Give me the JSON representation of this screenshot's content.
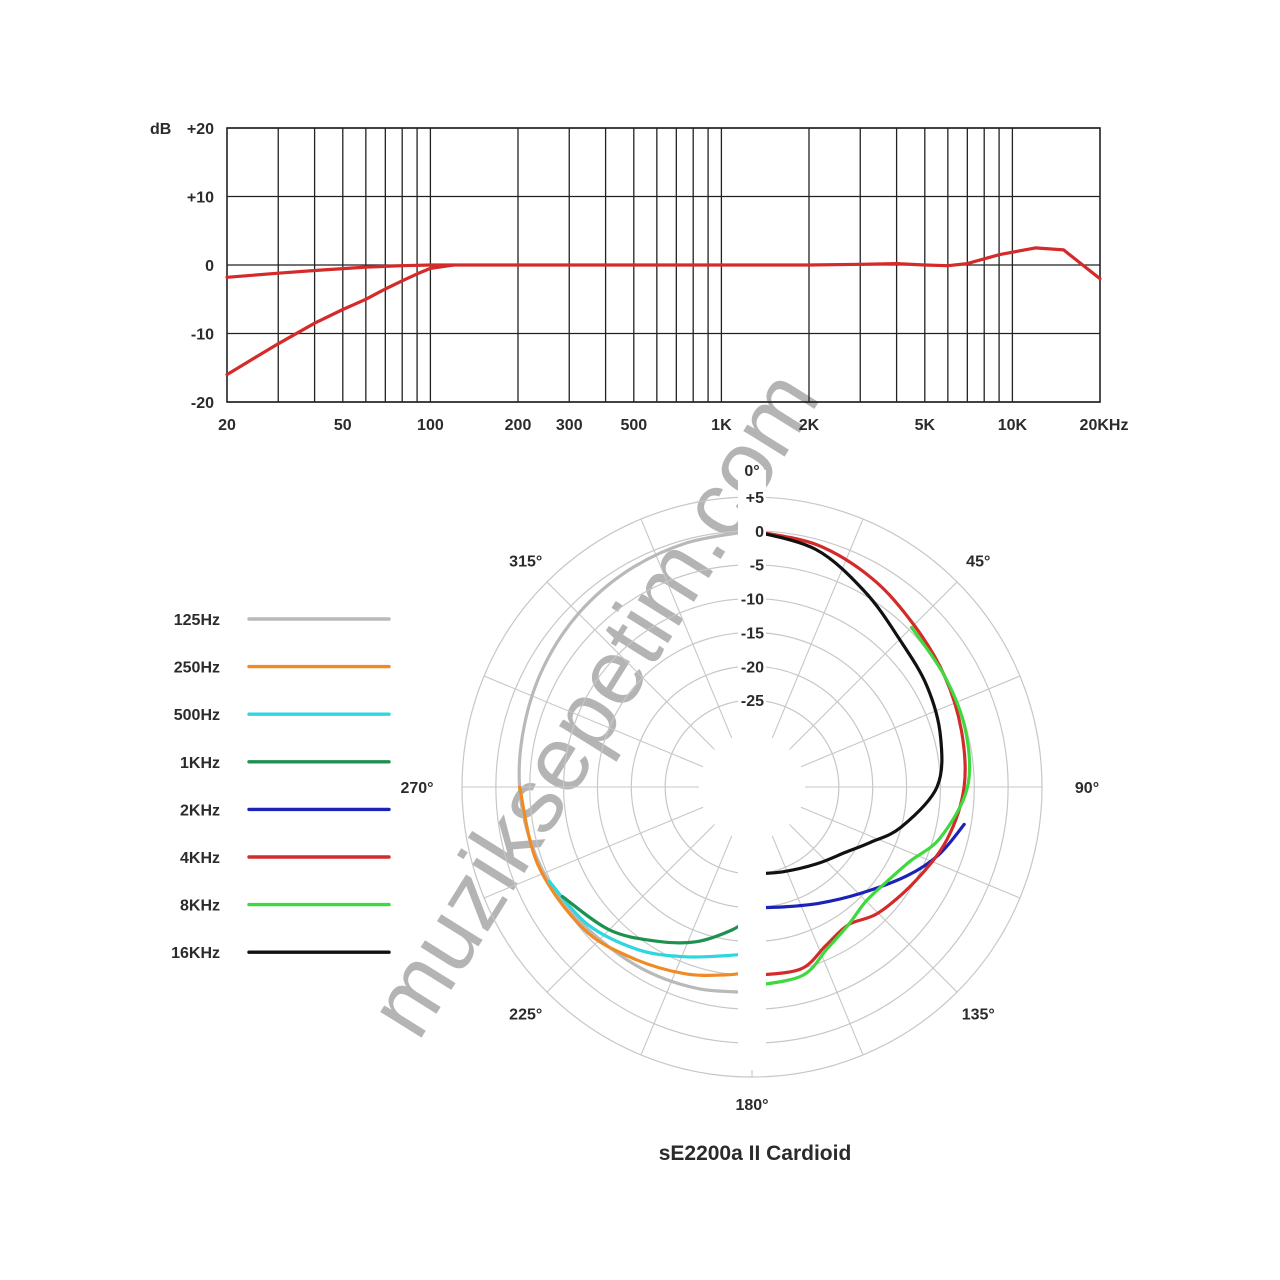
{
  "watermark": "muziksepetim.com",
  "chart_data": [
    {
      "type": "line",
      "x_scale": "log",
      "xlim": [
        20,
        20000
      ],
      "ylim": [
        -20,
        20
      ],
      "grid": true,
      "ylabel": "dB",
      "y_ticks": [
        {
          "value": 20,
          "label": "+20"
        },
        {
          "value": 10,
          "label": "+10"
        },
        {
          "value": 0,
          "label": "0"
        },
        {
          "value": -10,
          "label": "-10"
        },
        {
          "value": -20,
          "label": "-20"
        }
      ],
      "x_ticks": [
        {
          "value": 20,
          "label": "20"
        },
        {
          "value": 50,
          "label": "50"
        },
        {
          "value": 100,
          "label": "100"
        },
        {
          "value": 200,
          "label": "200"
        },
        {
          "value": 300,
          "label": "300"
        },
        {
          "value": 500,
          "label": "500"
        },
        {
          "value": 1000,
          "label": "1K"
        },
        {
          "value": 2000,
          "label": "2K"
        },
        {
          "value": 5000,
          "label": "5K"
        },
        {
          "value": 10000,
          "label": "10K"
        },
        {
          "value": 20000,
          "label": "20KHz"
        }
      ],
      "series": [
        {
          "color": "#d42a2a",
          "x": [
            20,
            30,
            40,
            60,
            80,
            100,
            150,
            300,
            1000,
            2000,
            3000,
            4000,
            5000,
            6000,
            7000,
            9000,
            12000,
            15000,
            20000
          ],
          "y": [
            -1.8,
            -1.2,
            -0.8,
            -0.3,
            -0.1,
            0,
            0,
            0,
            0,
            0,
            0.1,
            0.2,
            0,
            -0.1,
            0.2,
            1.5,
            2.5,
            2.2,
            -2.0
          ]
        },
        {
          "color": "#d42a2a",
          "x": [
            20,
            25,
            30,
            40,
            50,
            60,
            70,
            80,
            90,
            100,
            120
          ],
          "y": [
            -16,
            -13.5,
            -11.5,
            -8.5,
            -6.5,
            -5,
            -3.5,
            -2.3,
            -1.3,
            -0.5,
            0
          ]
        }
      ]
    },
    {
      "type": "polar",
      "title": "sE2200a II Cardioid",
      "r_range": [
        -30,
        5
      ],
      "radial_ticks": [
        {
          "value": 5,
          "label": "+5"
        },
        {
          "value": 0,
          "label": "0"
        },
        {
          "value": -5,
          "label": "-5"
        },
        {
          "value": -10,
          "label": "-10"
        },
        {
          "value": -15,
          "label": "-15"
        },
        {
          "value": -20,
          "label": "-20"
        },
        {
          "value": -25,
          "label": "-25"
        }
      ],
      "angle_labels": [
        {
          "angle": 0,
          "label": "0°"
        },
        {
          "angle": 45,
          "label": "45°"
        },
        {
          "angle": 90,
          "label": "90°"
        },
        {
          "angle": 135,
          "label": "135°"
        },
        {
          "angle": 180,
          "label": "180°"
        },
        {
          "angle": 225,
          "label": "225°"
        },
        {
          "angle": 270,
          "label": "270°"
        },
        {
          "angle": 315,
          "label": "315°"
        }
      ],
      "legend_position": "left",
      "series": [
        {
          "name": "125Hz",
          "color": "#b9b9b9",
          "side": "left",
          "points": [
            [
              0,
              0
            ],
            [
              15,
              -0.5
            ],
            [
              30,
              -1
            ],
            [
              45,
              -1.6
            ],
            [
              60,
              -2.3
            ],
            [
              75,
              -3
            ],
            [
              90,
              -3.5
            ],
            [
              105,
              -4.2
            ],
            [
              120,
              -5
            ],
            [
              135,
              -6
            ],
            [
              150,
              -6.5
            ],
            [
              165,
              -7
            ],
            [
              179,
              -7.5
            ]
          ]
        },
        {
          "name": "250Hz",
          "color": "#f08a24",
          "side": "left",
          "points": [
            [
              90,
              -3.5
            ],
            [
              110,
              -4.2
            ],
            [
              130,
              -5.3
            ],
            [
              145,
              -7
            ],
            [
              160,
              -8.5
            ],
            [
              172,
              -9.8
            ],
            [
              179,
              -10.5
            ]
          ]
        },
        {
          "name": "500Hz",
          "color": "#2fd6e0",
          "side": "left",
          "points": [
            [
              115,
              -4.8
            ],
            [
              130,
              -6.2
            ],
            [
              145,
              -8.5
            ],
            [
              158,
              -10.8
            ],
            [
              170,
              -12.5
            ],
            [
              179,
              -13.2
            ]
          ]
        },
        {
          "name": "1KHz",
          "color": "#1e9150",
          "side": "left",
          "points": [
            [
              120,
              -5.5
            ],
            [
              135,
              -8
            ],
            [
              148,
              -11
            ],
            [
              160,
              -13.5
            ],
            [
              172,
              -16.5
            ],
            [
              179,
              -18.5
            ]
          ]
        },
        {
          "name": "2KHz",
          "color": "#1a22b8",
          "side": "right",
          "points": [
            [
              100,
              -6
            ],
            [
              110,
              -8.5
            ],
            [
              120,
              -11.5
            ],
            [
              135,
              -15.5
            ],
            [
              150,
              -18
            ],
            [
              165,
              -19.5
            ],
            [
              179,
              -20
            ]
          ]
        },
        {
          "name": "4KHz",
          "color": "#d42a2a",
          "side": "right",
          "points": [
            [
              0,
              0
            ],
            [
              15,
              -0.8
            ],
            [
              30,
              -2.3
            ],
            [
              45,
              -4
            ],
            [
              60,
              -5
            ],
            [
              75,
              -5.8
            ],
            [
              90,
              -6.5
            ],
            [
              105,
              -8
            ],
            [
              120,
              -10
            ],
            [
              135,
              -11.5
            ],
            [
              145,
              -13
            ],
            [
              155,
              -12
            ],
            [
              165,
              -10
            ],
            [
              179,
              -10
            ]
          ]
        },
        {
          "name": "8KHz",
          "color": "#3fd83f",
          "side": "right",
          "points": [
            [
              45,
              -4.5
            ],
            [
              60,
              -5
            ],
            [
              75,
              -5.2
            ],
            [
              90,
              -6
            ],
            [
              105,
              -9
            ],
            [
              115,
              -12
            ],
            [
              125,
              -13.5
            ],
            [
              135,
              -14
            ],
            [
              145,
              -13
            ],
            [
              155,
              -11.5
            ],
            [
              165,
              -9
            ],
            [
              179,
              -8.5
            ]
          ]
        },
        {
          "name": "16KHz",
          "color": "#111111",
          "side": "right",
          "points": [
            [
              0,
              0
            ],
            [
              15,
              -1.5
            ],
            [
              30,
              -4.5
            ],
            [
              45,
              -7
            ],
            [
              60,
              -8
            ],
            [
              75,
              -9
            ],
            [
              90,
              -10.5
            ],
            [
              105,
              -15
            ],
            [
              115,
              -18.5
            ],
            [
              125,
              -21
            ],
            [
              140,
              -23
            ],
            [
              160,
              -24.5
            ],
            [
              179,
              -25
            ]
          ]
        }
      ]
    }
  ]
}
